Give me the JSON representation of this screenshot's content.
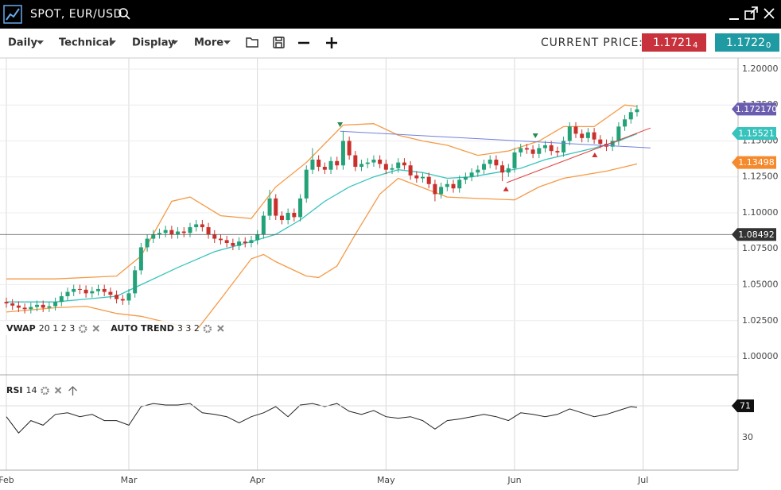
{
  "header": {
    "title": "SPOT, EUR/USD"
  },
  "toolbar": {
    "menus": [
      "Daily",
      "Technical",
      "Display",
      "More"
    ],
    "current_price_label": "CURRENT PRICE:",
    "bid": {
      "price": "1.1721",
      "pip": "4",
      "color": "#c8323c"
    },
    "ask": {
      "price": "1.1722",
      "pip": "0",
      "color": "#1f9aa2"
    }
  },
  "chart_data": [
    {
      "type": "candlestick",
      "up_color": "#23a178",
      "down_color": "#c9302c",
      "xlim": [
        -1.04,
        119.5
      ],
      "ylim": [
        0.9873,
        1.2077
      ],
      "grid": true,
      "yticks": [
        {
          "value": 1.0,
          "label": "1.00000"
        },
        {
          "value": 1.025,
          "label": "1.02500"
        },
        {
          "value": 1.05,
          "label": "1.05000"
        },
        {
          "value": 1.075,
          "label": "1.07500"
        },
        {
          "value": 1.1,
          "label": "1.10000"
        },
        {
          "value": 1.125,
          "label": "1.12500"
        },
        {
          "value": 1.15,
          "label": "1.15000"
        },
        {
          "value": 1.175,
          "label": "1.17500"
        },
        {
          "value": 1.2,
          "label": "1.20000"
        }
      ],
      "open": [
        1.038,
        1.037,
        1.0355,
        1.034,
        1.033,
        1.0345,
        1.036,
        1.034,
        1.035,
        1.038,
        1.042,
        1.045,
        1.047,
        1.0465,
        1.044,
        1.0455,
        1.047,
        1.045,
        1.043,
        1.04,
        1.039,
        1.044,
        1.06,
        1.076,
        1.082,
        1.085,
        1.086,
        1.088,
        1.085,
        1.087,
        1.086,
        1.09,
        1.092,
        1.09,
        1.085,
        1.082,
        1.081,
        1.079,
        1.077,
        1.08,
        1.079,
        1.081,
        1.085,
        1.098,
        1.11,
        1.098,
        1.095,
        1.1,
        1.097,
        1.11,
        1.13,
        1.137,
        1.132,
        1.13,
        1.136,
        1.133,
        1.15,
        1.14,
        1.132,
        1.134,
        1.135,
        1.137,
        1.134,
        1.13,
        1.131,
        1.135,
        1.133,
        1.126,
        1.124,
        1.125,
        1.12,
        1.113,
        1.118,
        1.12,
        1.117,
        1.123,
        1.125,
        1.128,
        1.13,
        1.134,
        1.137,
        1.133,
        1.128,
        1.131,
        1.142,
        1.145,
        1.144,
        1.141,
        1.145,
        1.147,
        1.143,
        1.142,
        1.15,
        1.16,
        1.155,
        1.152,
        1.156,
        1.151,
        1.148,
        1.146,
        1.15,
        1.16,
        1.165,
        1.17
      ],
      "high": [
        1.041,
        1.04,
        1.0385,
        1.037,
        1.0375,
        1.039,
        1.039,
        1.038,
        1.041,
        1.045,
        1.048,
        1.05,
        1.05,
        1.0495,
        1.0485,
        1.05,
        1.05,
        1.048,
        1.046,
        1.043,
        1.047,
        1.063,
        1.079,
        1.085,
        1.088,
        1.089,
        1.091,
        1.091,
        1.09,
        1.09,
        1.093,
        1.095,
        1.095,
        1.093,
        1.088,
        1.085,
        1.084,
        1.082,
        1.083,
        1.083,
        1.084,
        1.088,
        1.101,
        1.116,
        1.113,
        1.101,
        1.103,
        1.103,
        1.113,
        1.133,
        1.145,
        1.14,
        1.135,
        1.139,
        1.139,
        1.157,
        1.153,
        1.143,
        1.137,
        1.138,
        1.14,
        1.14,
        1.137,
        1.134,
        1.138,
        1.138,
        1.136,
        1.129,
        1.128,
        1.128,
        1.123,
        1.121,
        1.123,
        1.123,
        1.126,
        1.128,
        1.131,
        1.133,
        1.137,
        1.14,
        1.14,
        1.136,
        1.134,
        1.145,
        1.148,
        1.148,
        1.147,
        1.148,
        1.15,
        1.15,
        1.146,
        1.153,
        1.163,
        1.163,
        1.158,
        1.159,
        1.159,
        1.154,
        1.151,
        1.153,
        1.163,
        1.168,
        1.173,
        1.175
      ],
      "low": [
        1.034,
        1.0325,
        1.031,
        1.03,
        1.03,
        1.0315,
        1.031,
        1.031,
        1.032,
        1.035,
        1.039,
        1.042,
        1.0435,
        1.041,
        1.041,
        1.0425,
        1.042,
        1.04,
        1.037,
        1.036,
        1.036,
        1.041,
        1.057,
        1.073,
        1.079,
        1.082,
        1.083,
        1.082,
        1.082,
        1.083,
        1.083,
        1.087,
        1.087,
        1.082,
        1.079,
        1.078,
        1.076,
        1.074,
        1.074,
        1.076,
        1.076,
        1.078,
        1.082,
        1.095,
        1.095,
        1.092,
        1.092,
        1.094,
        1.094,
        1.107,
        1.127,
        1.129,
        1.127,
        1.127,
        1.13,
        1.13,
        1.137,
        1.129,
        1.129,
        1.131,
        1.132,
        1.131,
        1.127,
        1.127,
        1.128,
        1.13,
        1.123,
        1.121,
        1.121,
        1.117,
        1.108,
        1.11,
        1.115,
        1.114,
        1.114,
        1.12,
        1.122,
        1.125,
        1.127,
        1.131,
        1.13,
        1.122,
        1.125,
        1.128,
        1.139,
        1.141,
        1.138,
        1.138,
        1.142,
        1.14,
        1.139,
        1.139,
        1.147,
        1.152,
        1.149,
        1.149,
        1.148,
        1.145,
        1.143,
        1.143,
        1.147,
        1.157,
        1.162,
        1.167
      ],
      "close": [
        1.037,
        1.0355,
        1.034,
        1.033,
        1.0345,
        1.036,
        1.034,
        1.035,
        1.038,
        1.042,
        1.045,
        1.047,
        1.0465,
        1.044,
        1.0455,
        1.047,
        1.045,
        1.043,
        1.04,
        1.039,
        1.044,
        1.06,
        1.076,
        1.082,
        1.085,
        1.086,
        1.088,
        1.085,
        1.087,
        1.086,
        1.09,
        1.092,
        1.09,
        1.085,
        1.082,
        1.081,
        1.079,
        1.077,
        1.08,
        1.079,
        1.081,
        1.085,
        1.098,
        1.11,
        1.098,
        1.095,
        1.1,
        1.097,
        1.11,
        1.13,
        1.137,
        1.132,
        1.13,
        1.136,
        1.133,
        1.15,
        1.14,
        1.132,
        1.134,
        1.135,
        1.137,
        1.134,
        1.13,
        1.131,
        1.135,
        1.133,
        1.126,
        1.124,
        1.125,
        1.12,
        1.113,
        1.118,
        1.12,
        1.117,
        1.123,
        1.125,
        1.128,
        1.13,
        1.134,
        1.137,
        1.133,
        1.128,
        1.131,
        1.142,
        1.145,
        1.144,
        1.141,
        1.145,
        1.147,
        1.143,
        1.142,
        1.15,
        1.16,
        1.155,
        1.152,
        1.156,
        1.151,
        1.148,
        1.146,
        1.15,
        1.16,
        1.165,
        1.17,
        1.172
      ],
      "lines": [
        {
          "color": "#f59a45",
          "x": [
            0,
            8,
            18,
            22,
            27,
            30,
            35,
            40,
            44,
            49,
            55,
            60,
            64,
            68,
            72,
            77,
            82,
            87,
            91,
            96,
            101,
            103
          ],
          "values": [
            1.054,
            1.054,
            1.056,
            1.07,
            1.108,
            1.111,
            1.098,
            1.096,
            1.118,
            1.135,
            1.161,
            1.162,
            1.154,
            1.15,
            1.147,
            1.14,
            1.143,
            1.15,
            1.16,
            1.16,
            1.175,
            1.174
          ]
        },
        {
          "color": "#f59a45",
          "x": [
            0,
            8,
            13,
            18,
            22,
            28,
            31,
            35,
            40,
            42,
            44,
            49,
            51,
            54,
            57,
            61,
            64,
            72,
            77,
            83,
            87,
            91,
            98,
            103
          ],
          "values": [
            1.031,
            1.034,
            1.035,
            1.03,
            1.028,
            1.022,
            1.018,
            1.04,
            1.068,
            1.071,
            1.066,
            1.056,
            1.055,
            1.063,
            1.085,
            1.113,
            1.124,
            1.111,
            1.11,
            1.109,
            1.118,
            1.124,
            1.129,
            1.134
          ]
        },
        {
          "color": "#38c3bd",
          "x": [
            0,
            8,
            18,
            22,
            28,
            34,
            40,
            44,
            48,
            52,
            56,
            60,
            64,
            68,
            72,
            76,
            80,
            84,
            88,
            92,
            96,
            100,
            103
          ],
          "values": [
            1.038,
            1.038,
            1.042,
            1.05,
            1.062,
            1.073,
            1.08,
            1.085,
            1.095,
            1.108,
            1.118,
            1.125,
            1.13,
            1.128,
            1.124,
            1.125,
            1.128,
            1.131,
            1.137,
            1.141,
            1.145,
            1.15,
            1.155
          ]
        }
      ],
      "trend_lines": [
        {
          "color": "#7080dc",
          "x": [
            54.5,
            105.2
          ],
          "values": [
            1.1567,
            1.1451
          ]
        },
        {
          "color": "#e0403c",
          "x": [
            81.7,
            105.2
          ],
          "values": [
            1.121,
            1.159
          ]
        }
      ],
      "markers": [
        {
          "x": 54.5,
          "value": 1.1613,
          "shape": "down",
          "color": "#2a8a50"
        },
        {
          "x": 86.4,
          "value": 1.1536,
          "shape": "down",
          "color": "#2a8a50"
        },
        {
          "x": 81.6,
          "value": 1.1166,
          "shape": "up",
          "color": "#d03030"
        },
        {
          "x": 96.1,
          "value": 1.1403,
          "shape": "up",
          "color": "#d03030"
        }
      ],
      "price_tags": [
        {
          "value": 1.17217,
          "label": "1.172170",
          "color": "#6a5db0"
        },
        {
          "value": 1.15521,
          "color": "#38c3bd"
        },
        {
          "value": 1.13498,
          "color": "#f58a2c"
        },
        {
          "value": 1.08492,
          "color": "#333333",
          "crosshair": true
        }
      ],
      "studies": [
        {
          "name": "VWAP",
          "params": "20 1 2 3"
        },
        {
          "name": "AUTO TREND",
          "params": "3 3 2"
        }
      ]
    },
    {
      "type": "line",
      "color": "#222222",
      "xlim": [
        -1.04,
        119.5
      ],
      "ylim": [
        -12,
        111
      ],
      "yticks": [
        30
      ],
      "xticks": [
        {
          "value": 0,
          "label": "Feb"
        },
        {
          "value": 20,
          "label": "Mar"
        },
        {
          "value": 41,
          "label": "Apr"
        },
        {
          "value": 62,
          "label": "May"
        },
        {
          "value": 83,
          "label": "Jun"
        },
        {
          "value": 104,
          "label": "Jul"
        }
      ],
      "x": [
        0,
        2,
        4,
        6,
        8,
        10,
        12,
        14,
        16,
        18,
        20,
        22,
        24,
        26,
        28,
        30,
        32,
        34,
        36,
        38,
        40,
        42,
        44,
        46,
        48,
        50,
        52,
        54,
        56,
        58,
        60,
        62,
        64,
        66,
        68,
        70,
        72,
        74,
        76,
        78,
        80,
        82,
        84,
        86,
        88,
        90,
        92,
        94,
        96,
        98,
        100,
        102,
        103
      ],
      "values": [
        57,
        36,
        52,
        46,
        60,
        62,
        57,
        60,
        52,
        52,
        46,
        70,
        74,
        72,
        72,
        74,
        62,
        60,
        57,
        49,
        57,
        62,
        70,
        57,
        72,
        74,
        70,
        74,
        64,
        60,
        65,
        57,
        55,
        57,
        52,
        41,
        52,
        54,
        57,
        60,
        57,
        52,
        62,
        60,
        57,
        60,
        67,
        62,
        57,
        60,
        65,
        70,
        69
      ],
      "tag": {
        "value": 71,
        "color": "#111111"
      },
      "study": {
        "name": "RSI",
        "params": "14"
      }
    }
  ]
}
